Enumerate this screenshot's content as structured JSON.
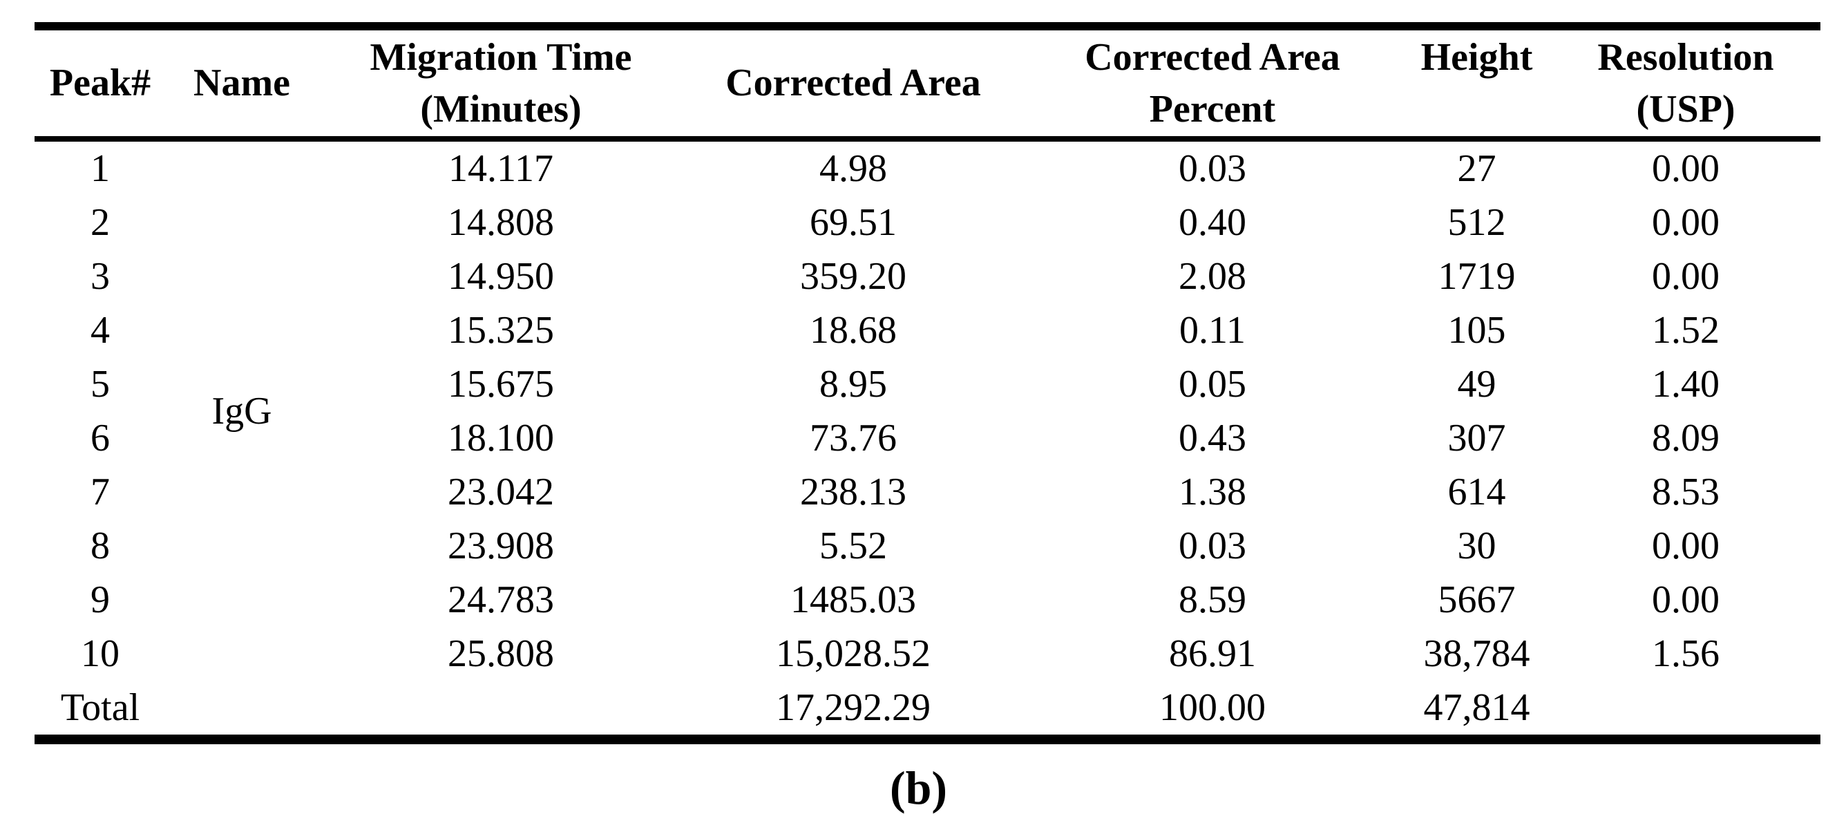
{
  "page": {
    "background": "#ffffff",
    "text_color": "#000000"
  },
  "caption": {
    "label": "(b)"
  },
  "table": {
    "header": {
      "peak": "Peak#",
      "name": "Name",
      "migration_line1": "Migration Time",
      "migration_line2": "(Minutes)",
      "corrected_area": "Corrected Area",
      "percent_line1": "Corrected Area",
      "percent_line2": "Percent",
      "height": "Height",
      "resolution_line1": "Resolution",
      "resolution_line2": "(USP)"
    },
    "name_group_value": "IgG",
    "rows": [
      {
        "peak": "1",
        "migration": "14.117",
        "area": "4.98",
        "percent": "0.03",
        "height": "27",
        "resolution": "0.00"
      },
      {
        "peak": "2",
        "migration": "14.808",
        "area": "69.51",
        "percent": "0.40",
        "height": "512",
        "resolution": "0.00"
      },
      {
        "peak": "3",
        "migration": "14.950",
        "area": "359.20",
        "percent": "2.08",
        "height": "1719",
        "resolution": "0.00"
      },
      {
        "peak": "4",
        "migration": "15.325",
        "area": "18.68",
        "percent": "0.11",
        "height": "105",
        "resolution": "1.52"
      },
      {
        "peak": "5",
        "migration": "15.675",
        "area": "8.95",
        "percent": "0.05",
        "height": "49",
        "resolution": "1.40"
      },
      {
        "peak": "6",
        "migration": "18.100",
        "area": "73.76",
        "percent": "0.43",
        "height": "307",
        "resolution": "8.09"
      },
      {
        "peak": "7",
        "migration": "23.042",
        "area": "238.13",
        "percent": "1.38",
        "height": "614",
        "resolution": "8.53"
      },
      {
        "peak": "8",
        "migration": "23.908",
        "area": "5.52",
        "percent": "0.03",
        "height": "30",
        "resolution": "0.00"
      },
      {
        "peak": "9",
        "migration": "24.783",
        "area": "1485.03",
        "percent": "8.59",
        "height": "5667",
        "resolution": "0.00"
      },
      {
        "peak": "10",
        "migration": "25.808",
        "area": "15,028.52",
        "percent": "86.91",
        "height": "38,784",
        "resolution": "1.56"
      }
    ],
    "total_row": {
      "label": "Total",
      "area": "17,292.29",
      "percent": "100.00",
      "height": "47,814"
    }
  }
}
